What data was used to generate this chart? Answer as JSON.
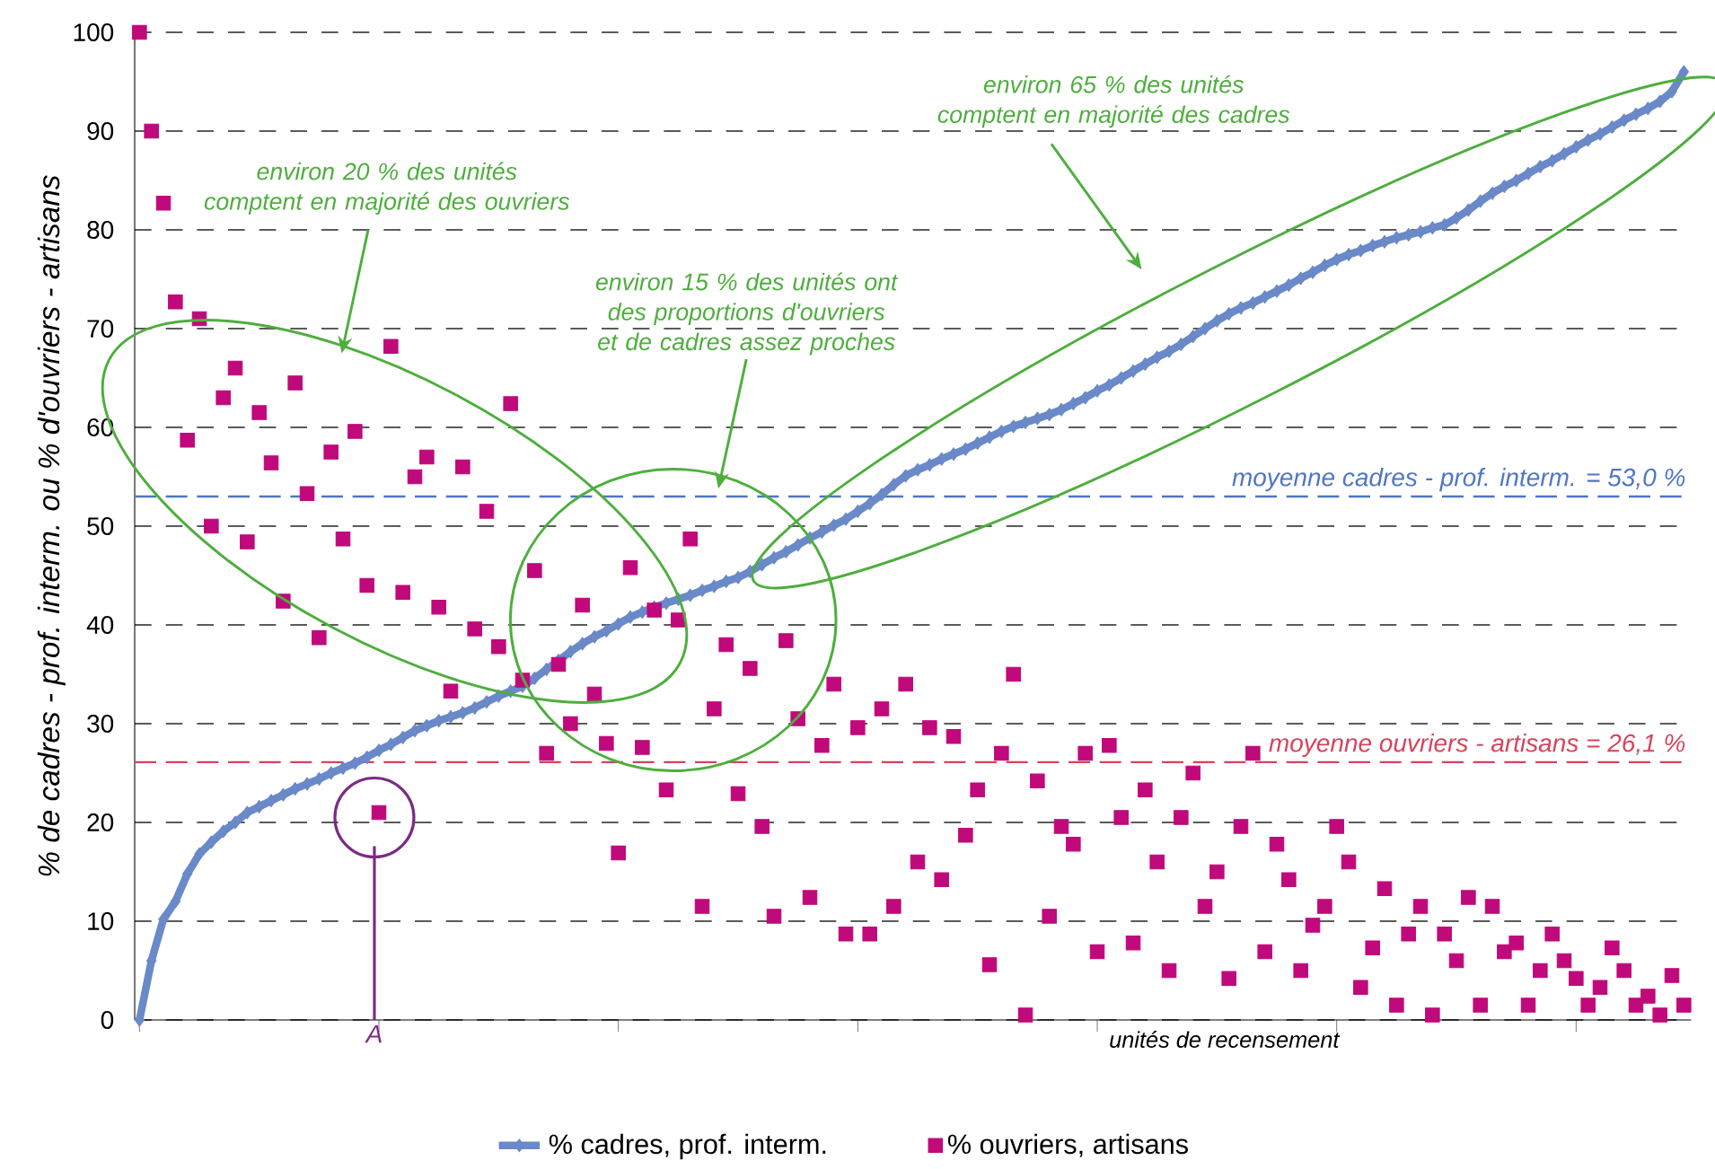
{
  "chart_data": {
    "type": "scatter",
    "ylabel": "% de cadres - prof. interm. ou % d'ouvriers - artisans",
    "xlabel": "unités de recensement",
    "categories": [
      null,
      null,
      null,
      null,
      null,
      null,
      null,
      null,
      null,
      null,
      null,
      null,
      null,
      null,
      null,
      null,
      null,
      null,
      null,
      null,
      null,
      null,
      null,
      null,
      null,
      null,
      null,
      null,
      null,
      null,
      null,
      null,
      null,
      null,
      null,
      null,
      null,
      null,
      null,
      null,
      null,
      null,
      null,
      null,
      null,
      null,
      null,
      null,
      null,
      null,
      null,
      null,
      null,
      null,
      null,
      null,
      null,
      null,
      null,
      null,
      null,
      null,
      null,
      null,
      null,
      null,
      null,
      null,
      null,
      null,
      null,
      null,
      null,
      null,
      null,
      null,
      null,
      null,
      null,
      null,
      null,
      null,
      null,
      null,
      null,
      null,
      null,
      null,
      null,
      null,
      null,
      null,
      null,
      null,
      null,
      null,
      null,
      null,
      null,
      null,
      null,
      null,
      null,
      null,
      null,
      null,
      null,
      null,
      null,
      null,
      null,
      null,
      null,
      null,
      null,
      null,
      null,
      null,
      null,
      null,
      null,
      null,
      null,
      null,
      null,
      null,
      null,
      null,
      null,
      null
    ],
    "ylim": [
      0,
      100
    ],
    "yticks": [
      0,
      10,
      20,
      30,
      40,
      50,
      60,
      70,
      80,
      90,
      100
    ],
    "grid": "y",
    "legend": "bottom",
    "series": [
      {
        "name": "%  cadres, prof. interm.",
        "type": "line",
        "color": "#6a89c8",
        "marker": "diamond",
        "values": [
          0,
          6,
          10.2,
          12,
          14.8,
          16.8,
          18,
          19.1,
          20,
          21,
          21.6,
          22.2,
          22.8,
          23.4,
          23.9,
          24.4,
          25,
          25.5,
          26,
          26.6,
          27.3,
          27.9,
          28.6,
          29.3,
          29.8,
          30.3,
          30.7,
          31.1,
          31.6,
          32.2,
          32.8,
          33.3,
          33.8,
          34.6,
          35.5,
          36.4,
          37.3,
          38.1,
          38.8,
          39.4,
          40.1,
          40.8,
          41.3,
          41.8,
          42.2,
          42.6,
          43,
          43.5,
          43.9,
          44.4,
          44.8,
          45.4,
          46.1,
          46.8,
          47.4,
          48.1,
          48.8,
          49.4,
          50.1,
          50.7,
          51.5,
          52.3,
          53.2,
          54.2,
          55.1,
          55.7,
          56.2,
          56.8,
          57.3,
          57.8,
          58.4,
          59,
          59.6,
          60.1,
          60.5,
          60.9,
          61.3,
          61.8,
          62.4,
          63,
          63.7,
          64.3,
          65,
          65.7,
          66.4,
          67.1,
          67.7,
          68.4,
          69.2,
          70,
          70.8,
          71.5,
          72.1,
          72.6,
          73.2,
          73.8,
          74.4,
          75.1,
          75.7,
          76.4,
          77,
          77.5,
          77.9,
          78.4,
          78.8,
          79.2,
          79.5,
          79.8,
          80.2,
          80.5,
          81.2,
          82,
          82.9,
          83.7,
          84.4,
          85,
          85.7,
          86.4,
          87,
          87.7,
          88.4,
          89.1,
          89.7,
          90.4,
          91.1,
          91.7,
          92.3,
          93,
          94,
          96
        ]
      },
      {
        "name": "%  ouvriers, artisans",
        "color": "#c0097a",
        "marker": "square",
        "values": [
          100,
          90,
          82.7,
          72.7,
          58.7,
          71,
          50,
          63,
          66,
          48.4,
          61.5,
          56.4,
          42.4,
          64.5,
          53.3,
          38.7,
          57.5,
          48.7,
          59.6,
          44,
          21,
          68.2,
          43.3,
          55,
          57,
          41.8,
          33.3,
          56,
          39.6,
          51.5,
          37.8,
          62.4,
          34.4,
          45.5,
          27,
          36,
          30,
          42,
          33,
          28,
          16.9,
          45.8,
          27.6,
          41.5,
          23.3,
          40.5,
          48.7,
          11.5,
          31.5,
          38,
          22.9,
          35.6,
          19.6,
          10.5,
          38.4,
          30.5,
          12.4,
          27.8,
          34,
          8.7,
          29.6,
          8.7,
          31.5,
          11.5,
          34,
          16,
          29.6,
          14.2,
          28.7,
          18.7,
          23.3,
          5.6,
          27,
          35,
          0.5,
          24.2,
          10.5,
          19.6,
          17.8,
          27,
          6.9,
          27.8,
          20.5,
          7.8,
          23.3,
          16,
          5,
          20.5,
          25,
          11.5,
          15,
          4.2,
          19.6,
          27,
          6.9,
          17.8,
          14.2,
          5,
          9.6,
          11.5,
          19.6,
          16,
          3.3,
          7.3,
          13.3,
          1.5,
          8.7,
          11.5,
          0.5,
          8.7,
          6,
          12.4,
          1.5,
          11.5,
          6.9,
          7.8,
          1.5,
          5,
          8.7,
          6,
          4.2,
          1.5,
          3.3,
          7.3,
          5,
          1.5,
          2.4,
          0.5,
          4.5,
          1.5
        ]
      }
    ],
    "ref_lines": [
      {
        "axis": "y",
        "value": 53.0,
        "label": "moyenne cadres - prof. interm. = 53,0 %",
        "color": "#4f76c4",
        "line_style": "dashed"
      },
      {
        "axis": "y",
        "value": 26.1,
        "label": "moyenne ouvriers - artisans = 26,1 %",
        "color": "#d7435c",
        "line_style": "dashed"
      }
    ],
    "annotations": [
      "environ 20 % des unités comptent en majorité des ouvriers",
      "environ 15 % des unités ont des proportions d'ouvriers et de cadres assez proches",
      "environ 65 % des unités comptent en majorité des cadres",
      "A"
    ]
  }
}
